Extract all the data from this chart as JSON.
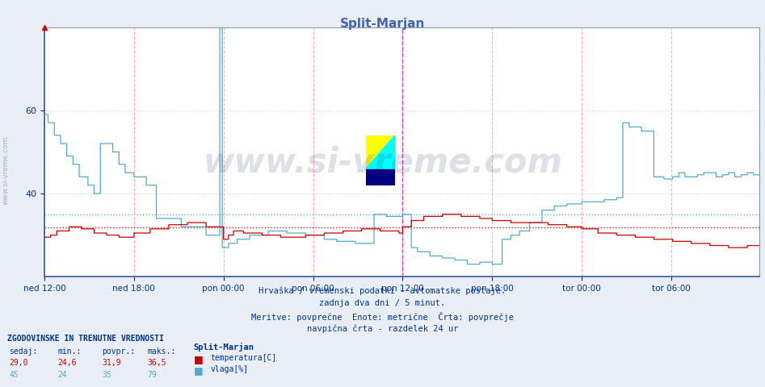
{
  "title": "Split-Marjan",
  "title_color": "#4466aa",
  "bg_color": "#e8eef4",
  "plot_bg_color": "#f0f4f8",
  "grid_color_h": "#c0c8d8",
  "grid_color_v_pink": "#ffb0b0",
  "text_color": "#003388",
  "x_ticks_labels": [
    "ned 12:00",
    "ned 18:00",
    "pon 00:00",
    "pon 06:00",
    "pon 12:00",
    "pon 18:00",
    "tor 00:00",
    "tor 06:00"
  ],
  "x_ticks_pos": [
    0,
    72,
    144,
    216,
    288,
    360,
    432,
    504
  ],
  "total_points": 576,
  "ylim": [
    20,
    80
  ],
  "yticks": [
    40,
    60
  ],
  "temp_avg": 31.9,
  "vlaga_avg": 35.0,
  "temp_color": "#cc0000",
  "vlaga_color": "#55aacc",
  "watermark": "www.si-vreme.com",
  "watermark_color": "#223366",
  "watermark_alpha": 0.15,
  "footer_lines": [
    "Hrvaška / vremenski podatki - avtomatske postaje.",
    "zadnja dva dni / 5 minut.",
    "Meritve: povprečne  Enote: metrične  Črta: povprečje",
    "navpična črta - razdelek 24 ur"
  ],
  "legend_header": "ZGODOVINSKE IN TRENUTNE VREDNOSTI",
  "legend_cols": [
    "sedaj:",
    "min.:",
    "povpr.:",
    "maks.:"
  ],
  "legend_temp_vals": [
    "29,0",
    "24,6",
    "31,9",
    "36,5"
  ],
  "legend_vlaga_vals": [
    "45",
    "24",
    "35",
    "79"
  ],
  "legend_temp_label": "temperatura[C]",
  "legend_vlaga_label": "vlaga[%]",
  "station_label": "Split-Marjan",
  "sidebar_text": "www.si-vreme.com"
}
